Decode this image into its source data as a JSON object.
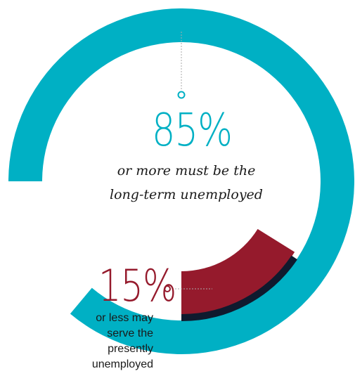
{
  "chart_data": {
    "type": "pie",
    "variant": "donut",
    "categories": [
      "long-term unemployed",
      "presently unemployed"
    ],
    "values": [
      85,
      15
    ],
    "series": [
      {
        "values": [
          85,
          15
        ]
      }
    ],
    "labels": {
      "primary": {
        "value": "85%",
        "text": "or more must be the\nlong-term unemployed"
      },
      "secondary": {
        "value": "15%",
        "text": "or less may\nserve the\npresently\nunemployed"
      }
    },
    "title": "",
    "legend": "none"
  },
  "colors": {
    "primary": "#00b0c4",
    "secondary": "#951a2c",
    "secondary_edge": "#0f1a2e",
    "leader": "#aaaaaa",
    "text": "#1a1a1a"
  }
}
